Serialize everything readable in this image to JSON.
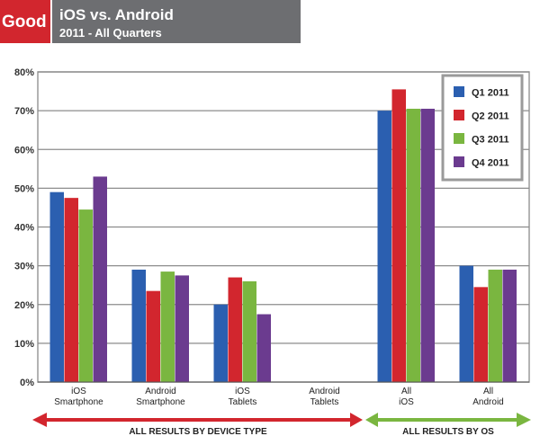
{
  "header": {
    "logo_text": "Good",
    "logo_color": "#d2262e",
    "title_bar_color": "#6d6e71",
    "title": "iOS vs. Android",
    "subtitle": "2011 - All Quarters"
  },
  "chart_data": {
    "type": "bar",
    "categories": [
      [
        "iOS",
        "Smartphone"
      ],
      [
        "Android",
        "Smartphone"
      ],
      [
        "iOS",
        "Tablets"
      ],
      [
        "Android",
        "Tablets"
      ],
      [
        "All",
        "iOS"
      ],
      [
        "All",
        "Android"
      ]
    ],
    "series": [
      {
        "name": "Q1 2011",
        "color": "#2b5fb0",
        "values": [
          49,
          29,
          20,
          0,
          70,
          30
        ]
      },
      {
        "name": "Q2 2011",
        "color": "#d2262e",
        "values": [
          47.5,
          23.5,
          27,
          0,
          75.5,
          24.5
        ]
      },
      {
        "name": "Q3 2011",
        "color": "#7ab640",
        "values": [
          44.5,
          28.5,
          26,
          0,
          70.5,
          29
        ]
      },
      {
        "name": "Q4 2011",
        "color": "#6b3b8f",
        "values": [
          53,
          27.5,
          17.5,
          0,
          70.5,
          29
        ]
      }
    ],
    "y_ticks": [
      "0%",
      "10%",
      "20%",
      "30%",
      "40%",
      "50%",
      "60%",
      "70%",
      "80%"
    ],
    "ylim": [
      0,
      80
    ],
    "grid": true,
    "legend_position": "top-right",
    "groups": [
      {
        "label": "ALL RESULTS BY DEVICE TYPE",
        "color": "#d2262e"
      },
      {
        "label": "ALL RESULTS BY OS",
        "color": "#7ab640"
      }
    ]
  }
}
